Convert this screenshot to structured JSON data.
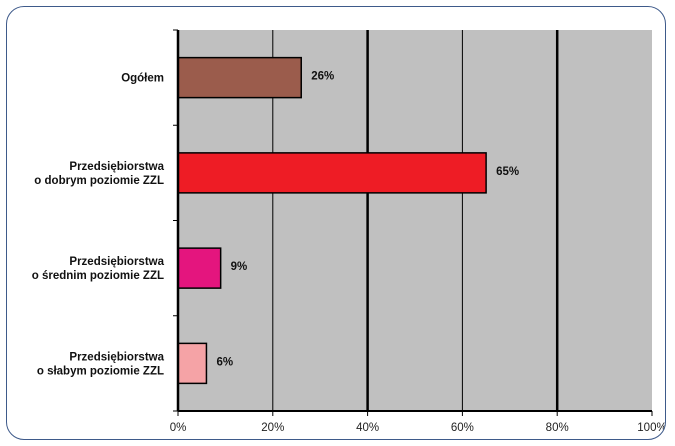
{
  "chart_data": {
    "type": "bar",
    "orientation": "horizontal",
    "title": "",
    "xlabel": "",
    "ylabel": "",
    "categories": [
      [
        "Ogółem"
      ],
      [
        "Przedsiębiorstwa",
        "o dobrym poziomie ZZL"
      ],
      [
        "Przedsiębiorstwa",
        "o średnim poziomie ZZL"
      ],
      [
        "Przedsiębiorstwa",
        "o słabym poziomie ZZL"
      ]
    ],
    "values": [
      26,
      65,
      9,
      6
    ],
    "value_labels": [
      "26%",
      "65%",
      "9%",
      "6%"
    ],
    "bar_colors": [
      "#9b5c4c",
      "#ee1c25",
      "#e4157e",
      "#f5a3a6"
    ],
    "xlim": [
      0,
      100
    ],
    "xticks": [
      0,
      20,
      40,
      60,
      80,
      100
    ],
    "xtick_labels": [
      "0%",
      "20%",
      "40%",
      "60%",
      "80%",
      "100%"
    ],
    "grid": true,
    "legend": "none",
    "plot_background": "#c0c0c0",
    "frame_color": "#3e5a8a"
  }
}
